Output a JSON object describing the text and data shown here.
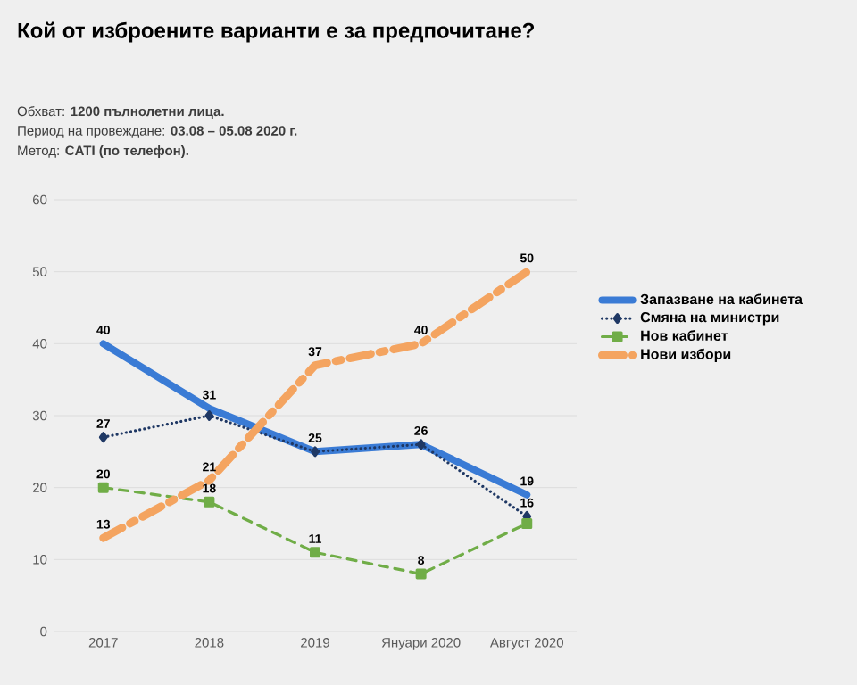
{
  "chart_data": {
    "type": "line",
    "title": "Кой от изброените варианти е за предпочитане?",
    "annotations": [
      "Обхват: **1200 пълнолетни лица.**",
      "Период на провеждане: **03.08 – 05.08 2020 г.**",
      "Метод: **CATI (по телефон).**"
    ],
    "categories": [
      "2017",
      "2018",
      "2019",
      "Януари 2020",
      "Август 2020"
    ],
    "series": [
      {
        "name": "Запазване на кабинета",
        "color": "#3a7bd5",
        "values": [
          40,
          31,
          25,
          26,
          19
        ],
        "value_labels": [
          "40",
          "31",
          "25",
          "26",
          "19"
        ],
        "line_style": "solid",
        "marker": "none"
      },
      {
        "name": "Смяна на министри",
        "color": "#1f3864",
        "values": [
          27,
          30,
          25,
          26,
          16
        ],
        "value_labels": [
          "27",
          null,
          null,
          null,
          "16"
        ],
        "line_style": "dotted",
        "marker": "diamond"
      },
      {
        "name": "Нов кабинет",
        "color": "#70ad47",
        "values": [
          20,
          18,
          11,
          8,
          15
        ],
        "value_labels": [
          "20",
          "18",
          "11",
          "8",
          null
        ],
        "line_style": "dashed",
        "marker": "square"
      },
      {
        "name": "Нови избори",
        "color": "#f4a460",
        "values": [
          13,
          21,
          37,
          40,
          50
        ],
        "value_labels": [
          "13",
          "21",
          "37",
          "40",
          "50"
        ],
        "line_style": "dashed",
        "marker": "none"
      }
    ],
    "ylim": [
      0,
      60
    ],
    "yticks": [
      0,
      10,
      20,
      30,
      40,
      50,
      60
    ],
    "grid": "y",
    "legend": "right"
  }
}
